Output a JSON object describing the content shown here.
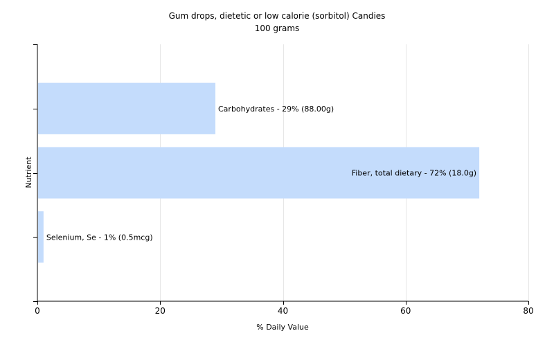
{
  "chart_data": {
    "type": "bar",
    "orientation": "horizontal",
    "title": "Gum drops, dietetic or low calorie (sorbitol) Candies",
    "subtitle": "100 grams",
    "xlabel": "% Daily Value",
    "ylabel": "Nutrient",
    "xlim": [
      0,
      80
    ],
    "xticks": [
      0,
      20,
      40,
      60,
      80
    ],
    "grid": true,
    "bar_color": "#c4dcfc",
    "bars": [
      {
        "value": 29,
        "label": "Carbohydrates - 29% (88.00g)"
      },
      {
        "value": 72,
        "label": "Fiber, total dietary - 72% (18.0g)"
      },
      {
        "value": 1,
        "label": "Selenium, Se - 1% (0.5mcg)"
      }
    ]
  }
}
